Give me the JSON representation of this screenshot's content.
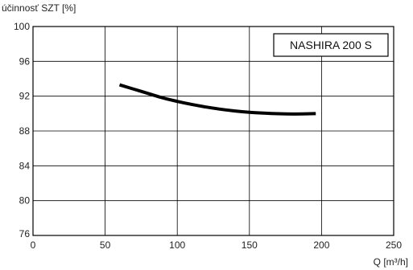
{
  "chart_data": {
    "type": "line",
    "title": "",
    "ylabel": "účinnosť SZT [%]",
    "xlabel": "Q [m³/h]",
    "xlim": [
      0,
      250
    ],
    "ylim": [
      76,
      100
    ],
    "x_ticks": [
      0,
      50,
      100,
      150,
      200,
      250
    ],
    "y_ticks": [
      76,
      80,
      84,
      88,
      92,
      96,
      100
    ],
    "grid": true,
    "legend_position": "top-right",
    "series": [
      {
        "name": "NASHIRA 200 S",
        "color": "#000000",
        "x": [
          60,
          70,
          80,
          90,
          100,
          110,
          120,
          130,
          140,
          150,
          160,
          170,
          180,
          190,
          196
        ],
        "y": [
          93.3,
          92.8,
          92.3,
          91.8,
          91.4,
          91.05,
          90.75,
          90.5,
          90.3,
          90.15,
          90.05,
          89.98,
          89.95,
          89.97,
          90.0
        ]
      }
    ]
  }
}
